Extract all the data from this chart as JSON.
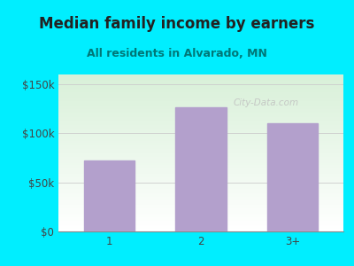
{
  "title": "Median family income by earners",
  "subtitle": "All residents in Alvarado, MN",
  "categories": [
    "1",
    "2",
    "3+"
  ],
  "values": [
    72000,
    127000,
    110000
  ],
  "bar_color": "#b3a0cc",
  "yticks": [
    0,
    50000,
    100000,
    150000
  ],
  "ytick_labels": [
    "$0",
    "$50k",
    "$100k",
    "$150k"
  ],
  "ylim": [
    0,
    160000
  ],
  "bg_color": "#00eeff",
  "plot_bg_top": "#d8f0d8",
  "plot_bg_bottom": "#ffffff",
  "title_color": "#222222",
  "subtitle_color": "#007777",
  "axis_color": "#aaaaaa",
  "watermark": "City-Data.com",
  "title_fontsize": 12,
  "subtitle_fontsize": 9,
  "tick_fontsize": 8.5
}
